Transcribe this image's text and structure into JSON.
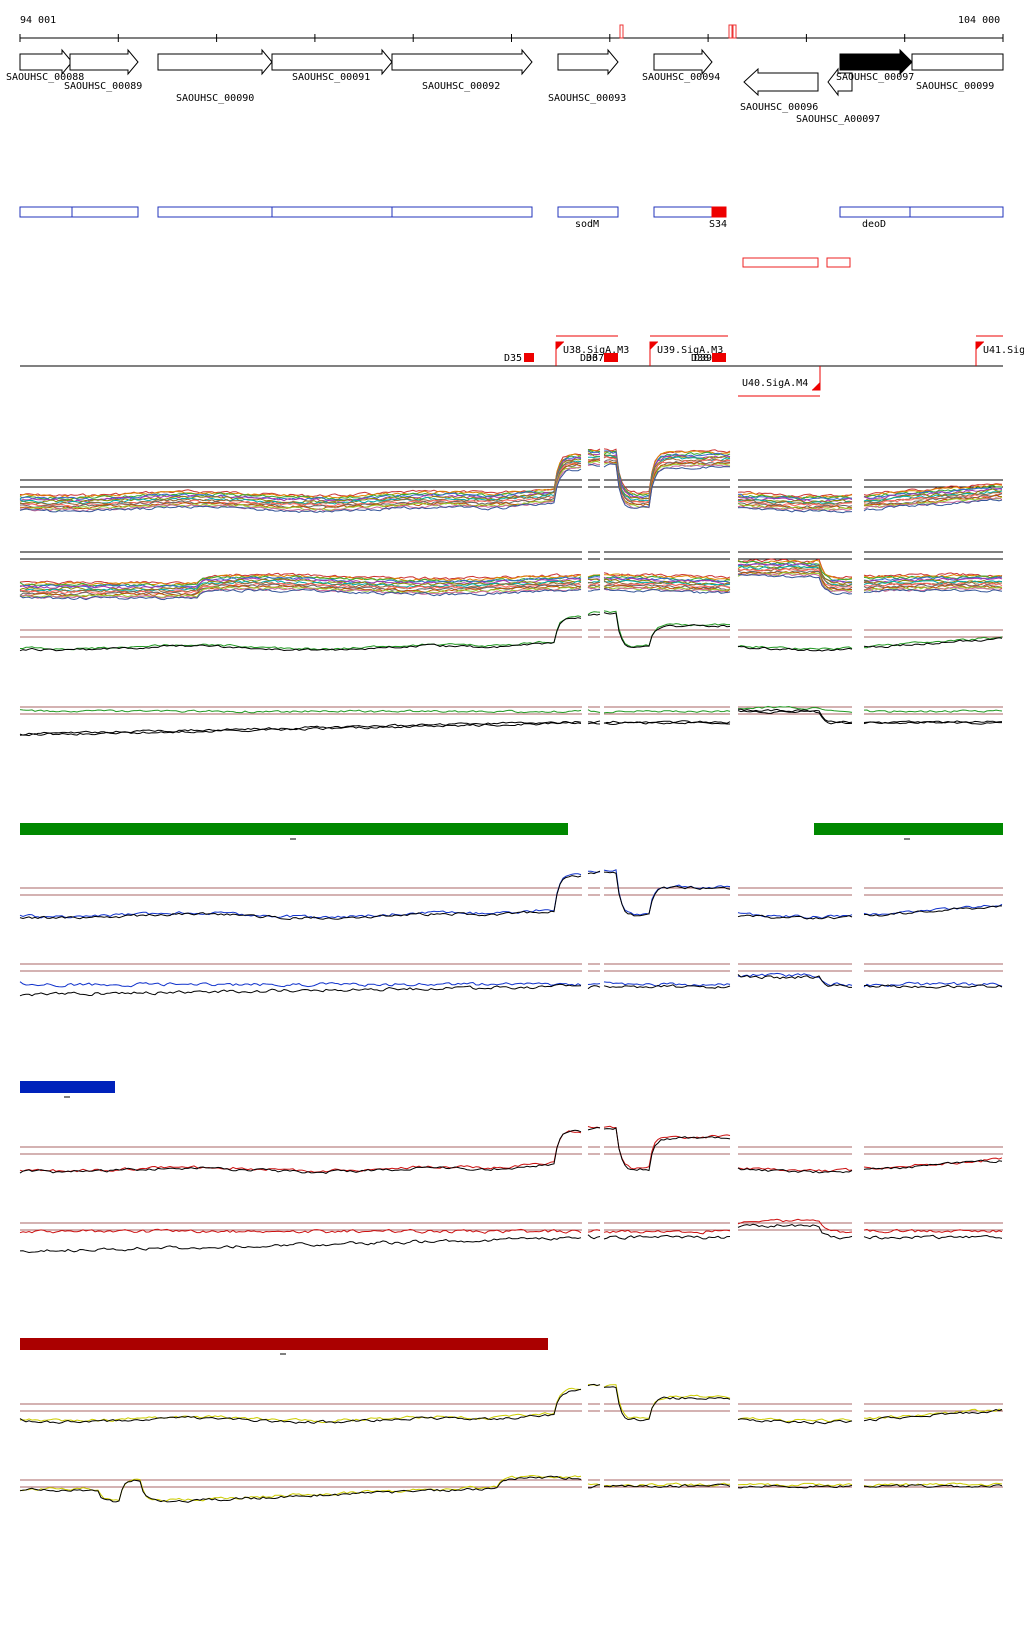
{
  "ruler": {
    "start_label": "94 001",
    "end_label": "104 000"
  },
  "genes": [
    {
      "label": "SAOUHSC_00088",
      "strand": "+",
      "filled": false
    },
    {
      "label": "SAOUHSC_00089",
      "strand": "+",
      "filled": false
    },
    {
      "label": "SAOUHSC_00090",
      "strand": "+",
      "filled": false
    },
    {
      "label": "SAOUHSC_00091",
      "strand": "+",
      "filled": false
    },
    {
      "label": "SAOUHSC_00092",
      "strand": "+",
      "filled": false
    },
    {
      "label": "SAOUHSC_00093",
      "strand": "+",
      "filled": false
    },
    {
      "label": "SAOUHSC_00094",
      "strand": "+",
      "filled": false
    },
    {
      "label": "SAOUHSC_00096",
      "strand": "-",
      "filled": false
    },
    {
      "label": "SAOUHSC_A00097",
      "strand": "-",
      "filled": false
    },
    {
      "label": "SAOUHSC_00097",
      "strand": "+",
      "filled": true
    },
    {
      "label": "SAOUHSC_00099",
      "strand": "+",
      "filled": false
    }
  ],
  "annotations": {
    "blue_labels": [
      "sodM",
      "deoD"
    ],
    "red_labels": [
      "S34"
    ]
  },
  "promoters": {
    "labels": [
      "D35",
      "U38.SigA.M3",
      "D36",
      "D37",
      "U39.SigA.M3",
      "D38",
      "D39",
      "U40.SigA.M4",
      "U41.Sig"
    ]
  },
  "condition_bars": [
    {
      "name": "green-condition",
      "color": "#008800"
    },
    {
      "name": "blue-condition",
      "color": "#0022bb"
    },
    {
      "name": "red-condition",
      "color": "#aa0000"
    }
  ],
  "tracks": {
    "multi_colors": [
      "#cc3333",
      "#dd8800",
      "#33aa33",
      "#3366cc",
      "#aa33aa",
      "#888800",
      "#00aaaa",
      "#996633",
      "#ff6666",
      "#666666",
      "#bb5500",
      "#99cc33",
      "#cc6699",
      "#335599"
    ],
    "green": "#229922",
    "blue": "#1133cc",
    "red": "#cc1111",
    "yellow": "#cccc00"
  }
}
